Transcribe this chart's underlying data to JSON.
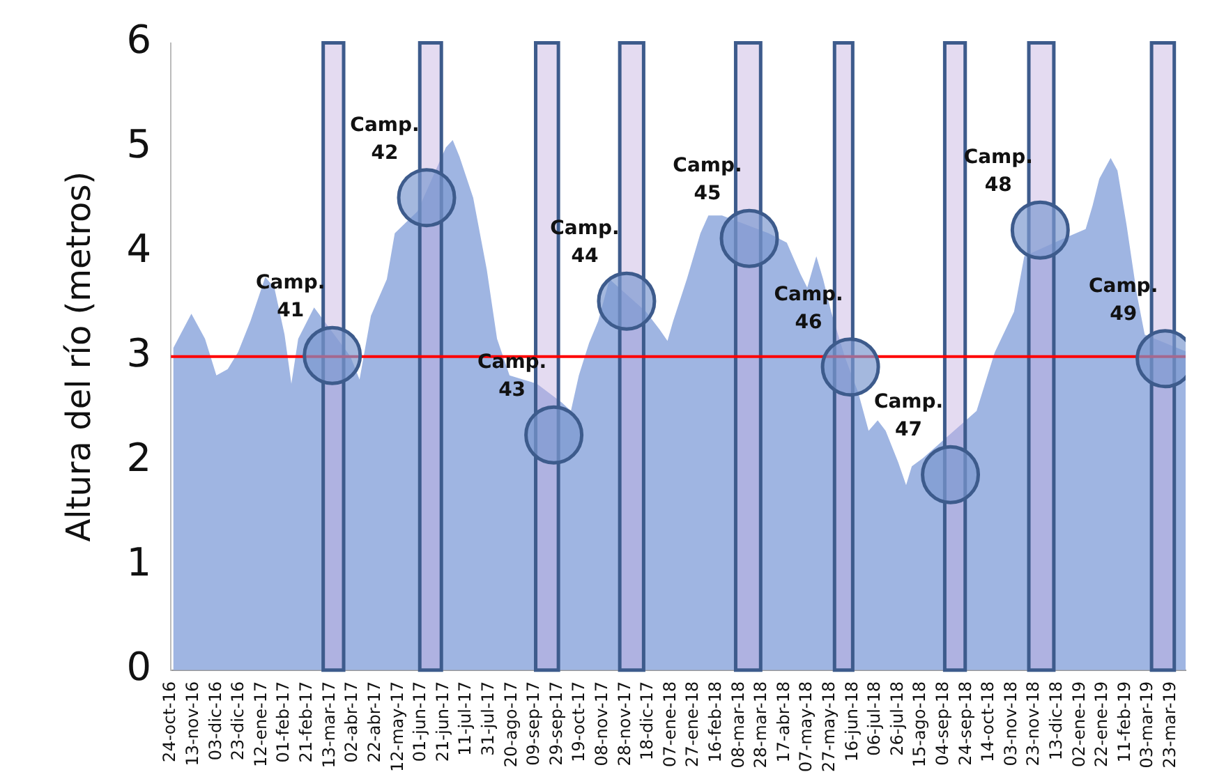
{
  "chart_data": {
    "type": "area",
    "ylabel": "Altura del río (metros)",
    "xlim": [
      "2016-10-24",
      "2019-04-05"
    ],
    "ylim": [
      0,
      6
    ],
    "yticks": [
      0,
      1,
      2,
      3,
      4,
      5,
      6
    ],
    "xticks": [
      {
        "value": "2016-10-24",
        "label": "24-oct-16"
      },
      {
        "value": "2016-11-13",
        "label": "13-nov-16"
      },
      {
        "value": "2016-12-03",
        "label": "03-dic-16"
      },
      {
        "value": "2016-12-23",
        "label": "23-dic-16"
      },
      {
        "value": "2017-01-12",
        "label": "12-ene-17"
      },
      {
        "value": "2017-02-01",
        "label": "01-feb-17"
      },
      {
        "value": "2017-02-21",
        "label": "21-feb-17"
      },
      {
        "value": "2017-03-13",
        "label": "13-mar-17"
      },
      {
        "value": "2017-04-02",
        "label": "02-abr-17"
      },
      {
        "value": "2017-04-22",
        "label": "22-abr-17"
      },
      {
        "value": "2017-05-12",
        "label": "12-may-17"
      },
      {
        "value": "2017-06-01",
        "label": "01-jun-17"
      },
      {
        "value": "2017-06-21",
        "label": "21-jun-17"
      },
      {
        "value": "2017-07-11",
        "label": "11-jul-17"
      },
      {
        "value": "2017-07-31",
        "label": "31-jul-17"
      },
      {
        "value": "2017-08-20",
        "label": "20-ago-17"
      },
      {
        "value": "2017-09-09",
        "label": "09-sep-17"
      },
      {
        "value": "2017-09-29",
        "label": "29-sep-17"
      },
      {
        "value": "2017-10-19",
        "label": "19-oct-17"
      },
      {
        "value": "2017-11-08",
        "label": "08-nov-17"
      },
      {
        "value": "2017-11-28",
        "label": "28-nov-17"
      },
      {
        "value": "2017-12-18",
        "label": "18-dic-17"
      },
      {
        "value": "2018-01-07",
        "label": "07-ene-18"
      },
      {
        "value": "2018-01-27",
        "label": "27-ene-18"
      },
      {
        "value": "2018-02-16",
        "label": "16-feb-18"
      },
      {
        "value": "2018-03-08",
        "label": "08-mar-18"
      },
      {
        "value": "2018-03-28",
        "label": "28-mar-18"
      },
      {
        "value": "2018-04-17",
        "label": "17-abr-18"
      },
      {
        "value": "2018-05-07",
        "label": "07-may-18"
      },
      {
        "value": "2018-05-27",
        "label": "27-may-18"
      },
      {
        "value": "2018-06-16",
        "label": "16-jun-18"
      },
      {
        "value": "2018-07-06",
        "label": "06-jul-18"
      },
      {
        "value": "2018-07-26",
        "label": "26-jul-18"
      },
      {
        "value": "2018-08-15",
        "label": "15-ago-18"
      },
      {
        "value": "2018-09-04",
        "label": "04-sep-18"
      },
      {
        "value": "2018-09-24",
        "label": "24-sep-18"
      },
      {
        "value": "2018-10-14",
        "label": "14-oct-18"
      },
      {
        "value": "2018-11-03",
        "label": "03-nov-18"
      },
      {
        "value": "2018-11-23",
        "label": "23-nov-18"
      },
      {
        "value": "2018-12-13",
        "label": "13-dic-18"
      },
      {
        "value": "2019-01-02",
        "label": "02-ene-19"
      },
      {
        "value": "2019-01-22",
        "label": "22-ene-19"
      },
      {
        "value": "2019-02-11",
        "label": "11-feb-19"
      },
      {
        "value": "2019-03-03",
        "label": "03-mar-19"
      },
      {
        "value": "2019-03-23",
        "label": "23-mar-19"
      }
    ],
    "grid": false,
    "legend": false,
    "series": [
      {
        "color": "#9fb5e2",
        "x": [
          "2016-10-26",
          "2016-11-11",
          "2016-11-23",
          "2016-12-03",
          "2016-12-13",
          "2016-12-22",
          "2017-01-02",
          "2017-01-15",
          "2017-01-23",
          "2017-02-01",
          "2017-02-07",
          "2017-02-13",
          "2017-02-27",
          "2017-03-31",
          "2017-04-08",
          "2017-04-18",
          "2017-05-02",
          "2017-05-09",
          "2017-05-29",
          "2017-06-23",
          "2017-06-29",
          "2017-07-05",
          "2017-07-17",
          "2017-07-29",
          "2017-08-07",
          "2017-08-18",
          "2017-08-30",
          "2017-09-11",
          "2017-10-03",
          "2017-10-11",
          "2017-10-18",
          "2017-10-27",
          "2017-11-04",
          "2017-11-14",
          "2017-12-16",
          "2017-12-28",
          "2018-01-04",
          "2018-01-09",
          "2018-01-21",
          "2018-02-02",
          "2018-02-09",
          "2018-02-21",
          "2018-04-03",
          "2018-04-19",
          "2018-05-01",
          "2018-05-07",
          "2018-05-15",
          "2018-05-21",
          "2018-05-28",
          "2018-06-09",
          "2018-06-21",
          "2018-06-30",
          "2018-07-08",
          "2018-07-15",
          "2018-07-26",
          "2018-08-02",
          "2018-08-07",
          "2018-08-17",
          "2018-10-03",
          "2018-10-19",
          "2018-11-05",
          "2018-11-14",
          "2018-12-23",
          "2019-01-07",
          "2019-01-13",
          "2019-01-19",
          "2019-01-29",
          "2019-02-04",
          "2019-02-12",
          "2019-02-21",
          "2019-02-28",
          "2019-04-05"
        ],
        "values": [
          3.08,
          3.41,
          3.17,
          2.82,
          2.88,
          3.04,
          3.34,
          3.76,
          3.66,
          3.21,
          2.74,
          3.17,
          3.47,
          3.0,
          2.78,
          3.39,
          3.74,
          4.18,
          4.39,
          5.0,
          5.07,
          4.91,
          4.52,
          3.83,
          3.17,
          2.82,
          2.78,
          2.74,
          2.56,
          2.48,
          2.82,
          3.13,
          3.34,
          3.74,
          3.43,
          3.26,
          3.15,
          3.34,
          3.74,
          4.18,
          4.35,
          4.35,
          4.18,
          4.09,
          3.79,
          3.66,
          3.96,
          3.74,
          3.43,
          3.0,
          2.65,
          2.29,
          2.39,
          2.29,
          1.99,
          1.77,
          1.95,
          2.03,
          2.48,
          3.04,
          3.43,
          3.96,
          4.15,
          4.22,
          4.44,
          4.7,
          4.9,
          4.78,
          4.26,
          3.6,
          3.21,
          3.05
        ]
      },
      {
        "type": "scatter",
        "color": "#7b98cf",
        "marker": "circle",
        "x": [
          "2017-03-15",
          "2017-06-06",
          "2017-09-26",
          "2017-11-29",
          "2018-03-17",
          "2018-06-14",
          "2018-09-10",
          "2018-11-28",
          "2019-03-18"
        ],
        "values": [
          3.01,
          4.52,
          2.25,
          3.53,
          4.13,
          2.9,
          1.87,
          4.21,
          2.98
        ]
      }
    ],
    "ref_lines": [
      {
        "axis": "y",
        "value": 3,
        "color": "#ff0000"
      }
    ],
    "bands": [
      {
        "axis": "x",
        "from": "2017-03-07",
        "to": "2017-03-25",
        "color": "#c3b0e0"
      },
      {
        "axis": "x",
        "from": "2017-05-31",
        "to": "2017-06-19",
        "color": "#c3b0e0"
      },
      {
        "axis": "x",
        "from": "2017-09-10",
        "to": "2017-09-30",
        "color": "#c3b0e0"
      },
      {
        "axis": "x",
        "from": "2017-11-23",
        "to": "2017-12-14",
        "color": "#c3b0e0"
      },
      {
        "axis": "x",
        "from": "2018-03-05",
        "to": "2018-03-27",
        "color": "#c3b0e0"
      },
      {
        "axis": "x",
        "from": "2018-05-31",
        "to": "2018-06-16",
        "color": "#c3b0e0"
      },
      {
        "axis": "x",
        "from": "2018-09-05",
        "to": "2018-09-23",
        "color": "#c3b0e0"
      },
      {
        "axis": "x",
        "from": "2018-11-18",
        "to": "2018-12-10",
        "color": "#c3b0e0"
      },
      {
        "axis": "x",
        "from": "2019-03-06",
        "to": "2019-03-26",
        "color": "#c3b0e0"
      }
    ],
    "annotations": [
      {
        "text": "Camp. 41",
        "x": "2017-03-15",
        "y": 3.01
      },
      {
        "text": "Camp. 42",
        "x": "2017-06-06",
        "y": 4.52
      },
      {
        "text": "Camp. 43",
        "x": "2017-09-26",
        "y": 2.25
      },
      {
        "text": "Camp. 44",
        "x": "2017-11-29",
        "y": 3.53
      },
      {
        "text": "Camp. 45",
        "x": "2018-03-17",
        "y": 4.13
      },
      {
        "text": "Camp. 46",
        "x": "2018-06-14",
        "y": 2.9
      },
      {
        "text": "Camp. 47",
        "x": "2018-09-10",
        "y": 1.87
      },
      {
        "text": "Camp. 48",
        "x": "2018-11-28",
        "y": 4.21
      },
      {
        "text": "Camp. 49",
        "x": "2019-03-18",
        "y": 2.98
      }
    ]
  }
}
